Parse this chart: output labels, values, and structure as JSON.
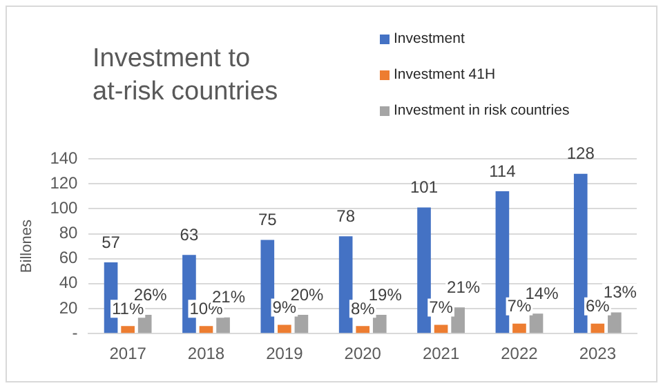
{
  "chart_data": {
    "type": "bar",
    "title": "Investment to\nat-risk countries",
    "ylabel": "Billones",
    "categories": [
      "2017",
      "2018",
      "2019",
      "2020",
      "2021",
      "2022",
      "2023"
    ],
    "series": [
      {
        "name": "Investment",
        "color": "#4472c4",
        "values": [
          57,
          63,
          75,
          78,
          101,
          114,
          128
        ],
        "value_labels": [
          "57",
          "63",
          "75",
          "78",
          "101",
          "114",
          "128"
        ]
      },
      {
        "name": "Investment 41H",
        "color": "#ed7d31",
        "values": [
          6,
          6,
          7,
          6,
          7,
          8,
          8
        ]
      },
      {
        "name": "Investment in risk countries",
        "color": "#a5a5a5",
        "values": [
          15,
          13,
          15,
          15,
          21,
          16,
          17
        ]
      }
    ],
    "annotations": [
      {
        "text": "11%",
        "x": "2017",
        "y": 6
      },
      {
        "text": "10%",
        "x": "2018",
        "y": 6
      },
      {
        "text": "9%",
        "x": "2019",
        "y": 7
      },
      {
        "text": "8%",
        "x": "2020",
        "y": 6
      },
      {
        "text": "7%",
        "x": "2021",
        "y": 7
      },
      {
        "text": "7%",
        "x": "2022",
        "y": 8
      },
      {
        "text": "6%",
        "x": "2023",
        "y": 8
      },
      "26%",
      "21%",
      "20%",
      "19%",
      "21%",
      "14%",
      "13%"
    ],
    "ylim": [
      0,
      140
    ],
    "yticks": [
      {
        "value": 0,
        "label": "-"
      },
      20,
      40,
      60,
      80,
      100,
      120,
      140
    ],
    "grid": "y",
    "legend": "top right"
  }
}
